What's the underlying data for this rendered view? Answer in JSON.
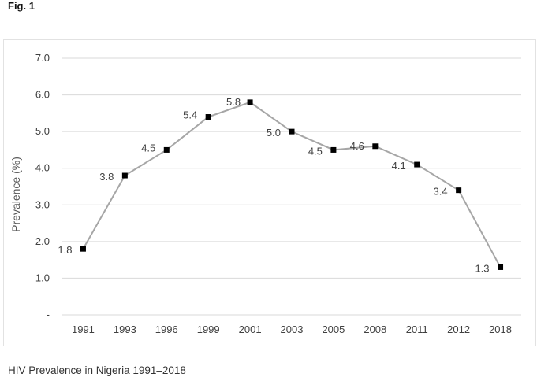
{
  "figure_label": "Fig. 1",
  "caption": "HIV Prevalence in Nigeria 1991–2018",
  "chart_data": {
    "type": "line",
    "title": "",
    "xlabel": "",
    "ylabel": "Prevalence (%)",
    "categories": [
      "1991",
      "1993",
      "1996",
      "1999",
      "2001",
      "2003",
      "2005",
      "2008",
      "2011",
      "2012",
      "2018"
    ],
    "values": [
      1.8,
      3.8,
      4.5,
      5.4,
      5.8,
      5.0,
      4.5,
      4.6,
      4.1,
      3.4,
      1.3
    ],
    "data_labels": [
      "1.8",
      "3.8",
      "4.5",
      "5.4",
      "5.8",
      "5.0",
      "4.5",
      "4.6",
      "4.1",
      "3.4",
      "1.3"
    ],
    "ylim": [
      0,
      7
    ],
    "yticks": [
      0,
      1,
      2,
      3,
      4,
      5,
      6,
      7
    ],
    "ytick_labels": [
      "-",
      "1.0",
      "2.0",
      "3.0",
      "4.0",
      "5.0",
      "6.0",
      "7.0"
    ],
    "grid": true,
    "legend": "none",
    "colors": {
      "line": "#a6a6a6",
      "marker": "#000000",
      "grid": "#d9d9d9",
      "text": "#404040"
    }
  }
}
